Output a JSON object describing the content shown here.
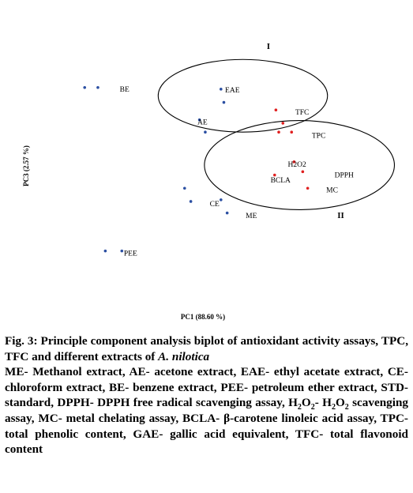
{
  "chart_data": {
    "type": "scatter",
    "xlabel": "PC1 (88.60 %)",
    "ylabel": "PC3 (2.57 %)",
    "xlim": [
      0,
      1
    ],
    "ylim": [
      0,
      1
    ],
    "grid": false,
    "colors": {
      "extract": "#2b4fa2",
      "assay": "#e02020",
      "ellipse": "#000000"
    },
    "groups": [
      {
        "label": "I",
        "lx": 0.65,
        "ly": 0.852,
        "ellipse": {
          "cx": 0.588,
          "cy": 0.71,
          "rx": 0.205,
          "ry": 0.11
        }
      },
      {
        "label": "II",
        "lx": 0.825,
        "ly": 0.34,
        "ellipse": {
          "cx": 0.725,
          "cy": 0.5,
          "rx": 0.23,
          "ry": 0.135
        }
      }
    ],
    "points": [
      {
        "x": 0.205,
        "y": 0.735,
        "kind": "extract"
      },
      {
        "x": 0.237,
        "y": 0.735,
        "kind": "extract"
      },
      {
        "x": 0.535,
        "y": 0.73,
        "kind": "extract"
      },
      {
        "x": 0.542,
        "y": 0.69,
        "kind": "extract"
      },
      {
        "x": 0.483,
        "y": 0.637,
        "kind": "extract"
      },
      {
        "x": 0.497,
        "y": 0.6,
        "kind": "extract"
      },
      {
        "x": 0.668,
        "y": 0.667,
        "kind": "assay"
      },
      {
        "x": 0.685,
        "y": 0.627,
        "kind": "assay"
      },
      {
        "x": 0.675,
        "y": 0.6,
        "kind": "assay"
      },
      {
        "x": 0.706,
        "y": 0.6,
        "kind": "assay"
      },
      {
        "x": 0.712,
        "y": 0.51,
        "kind": "assay"
      },
      {
        "x": 0.733,
        "y": 0.48,
        "kind": "assay"
      },
      {
        "x": 0.665,
        "y": 0.47,
        "kind": "assay"
      },
      {
        "x": 0.745,
        "y": 0.43,
        "kind": "assay"
      },
      {
        "x": 0.447,
        "y": 0.43,
        "kind": "extract"
      },
      {
        "x": 0.462,
        "y": 0.39,
        "kind": "extract"
      },
      {
        "x": 0.535,
        "y": 0.395,
        "kind": "extract"
      },
      {
        "x": 0.55,
        "y": 0.355,
        "kind": "extract"
      },
      {
        "x": 0.255,
        "y": 0.24,
        "kind": "extract"
      },
      {
        "x": 0.295,
        "y": 0.24,
        "kind": "extract"
      }
    ],
    "labels": [
      {
        "text": "BE",
        "x": 0.29,
        "y": 0.73
      },
      {
        "text": "EAE",
        "x": 0.545,
        "y": 0.727
      },
      {
        "text": "AE",
        "x": 0.478,
        "y": 0.63
      },
      {
        "text": "TFC",
        "x": 0.715,
        "y": 0.66
      },
      {
        "text": "TPC",
        "x": 0.755,
        "y": 0.59
      },
      {
        "text": "H2O2",
        "x": 0.697,
        "y": 0.502
      },
      {
        "text": "DPPH",
        "x": 0.81,
        "y": 0.47
      },
      {
        "text": "BCLA",
        "x": 0.655,
        "y": 0.455
      },
      {
        "text": "MC",
        "x": 0.79,
        "y": 0.425
      },
      {
        "text": "CE",
        "x": 0.508,
        "y": 0.383
      },
      {
        "text": "ME",
        "x": 0.595,
        "y": 0.347
      },
      {
        "text": "PEE",
        "x": 0.3,
        "y": 0.233
      }
    ]
  },
  "caption": {
    "fig_title_a": "Fig. 3: Principle component analysis biplot of antioxidant activity assays, TPC, TFC and different extracts of ",
    "fig_title_species": "A. nilotica",
    "legend_a": "ME- Methanol extract, AE- acetone extract, EAE- ethyl acetate extract, CE- chloroform extract, BE- benzene extract, PEE- petroleum ether extract, STD- standard, DPPH- DPPH free radical scavenging assay, H",
    "legend_h2o2_sub1": "2",
    "legend_o1": "O",
    "legend_h2o2_sub2": "2",
    "legend_b": "- H",
    "legend_h2o2_sub3": "2",
    "legend_o2": "O",
    "legend_h2o2_sub4": "2",
    "legend_c": " scavenging assay, MC- metal chelating assay, BCLA- β-carotene linoleic acid assay, TPC- total phenolic content, GAE- gallic acid equivalent, TFC- total flavonoid content"
  }
}
